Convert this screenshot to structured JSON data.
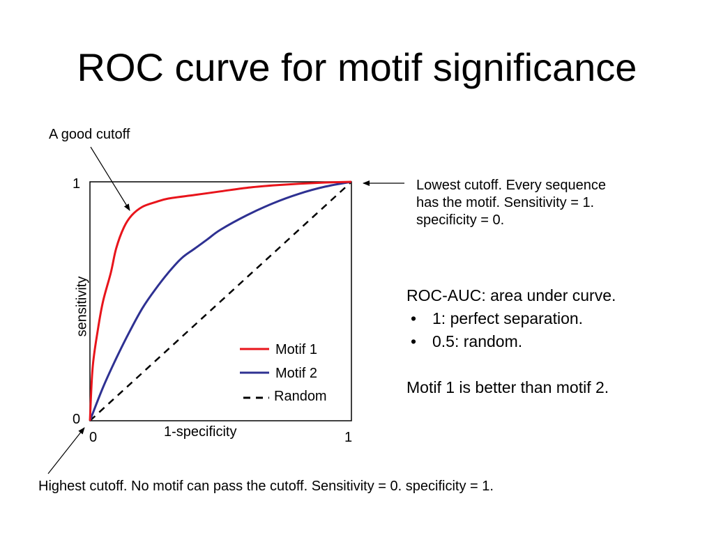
{
  "title": "ROC curve for motif significance",
  "annotations": {
    "good_cutoff": "A good cutoff",
    "lowest_cutoff": [
      "Lowest cutoff. Every sequence",
      "has the motif. Sensitivity = 1.",
      "specificity = 0."
    ],
    "highest_cutoff": "Highest cutoff. No motif can pass the cutoff. Sensitivity = 0. specificity = 1."
  },
  "notes": {
    "auc_heading": "ROC-AUC: area under curve.",
    "bullets": [
      "1: perfect separation.",
      "0.5: random."
    ],
    "conclusion": "Motif 1 is better than motif 2."
  },
  "chart_data": {
    "type": "line",
    "xlabel": "1-specificity",
    "ylabel": "sensitivity",
    "xlim": [
      0,
      1
    ],
    "ylim": [
      0,
      1
    ],
    "x_ticks": [
      "0",
      "1"
    ],
    "y_ticks": [
      "0",
      "1"
    ],
    "grid": false,
    "legend_position": "bottom-right",
    "series": [
      {
        "name": "Motif 1",
        "color": "#e8141b",
        "style": "solid",
        "x": [
          0,
          0.01,
          0.03,
          0.05,
          0.08,
          0.1,
          0.13,
          0.16,
          0.2,
          0.25,
          0.3,
          0.4,
          0.5,
          0.6,
          0.7,
          0.8,
          0.9,
          1.0
        ],
        "y": [
          0,
          0.22,
          0.38,
          0.5,
          0.62,
          0.72,
          0.81,
          0.86,
          0.895,
          0.915,
          0.93,
          0.945,
          0.96,
          0.975,
          0.985,
          0.992,
          0.997,
          1.0
        ]
      },
      {
        "name": "Motif 2",
        "color": "#2e3192",
        "style": "solid",
        "x": [
          0,
          0.05,
          0.1,
          0.15,
          0.2,
          0.25,
          0.3,
          0.35,
          0.4,
          0.45,
          0.5,
          0.6,
          0.7,
          0.8,
          0.9,
          1.0
        ],
        "y": [
          0,
          0.14,
          0.26,
          0.37,
          0.47,
          0.55,
          0.62,
          0.68,
          0.72,
          0.76,
          0.8,
          0.86,
          0.91,
          0.95,
          0.98,
          1.0
        ]
      },
      {
        "name": "Random",
        "color": "#000000",
        "style": "dashed",
        "x": [
          0,
          1
        ],
        "y": [
          0,
          1
        ]
      }
    ]
  }
}
